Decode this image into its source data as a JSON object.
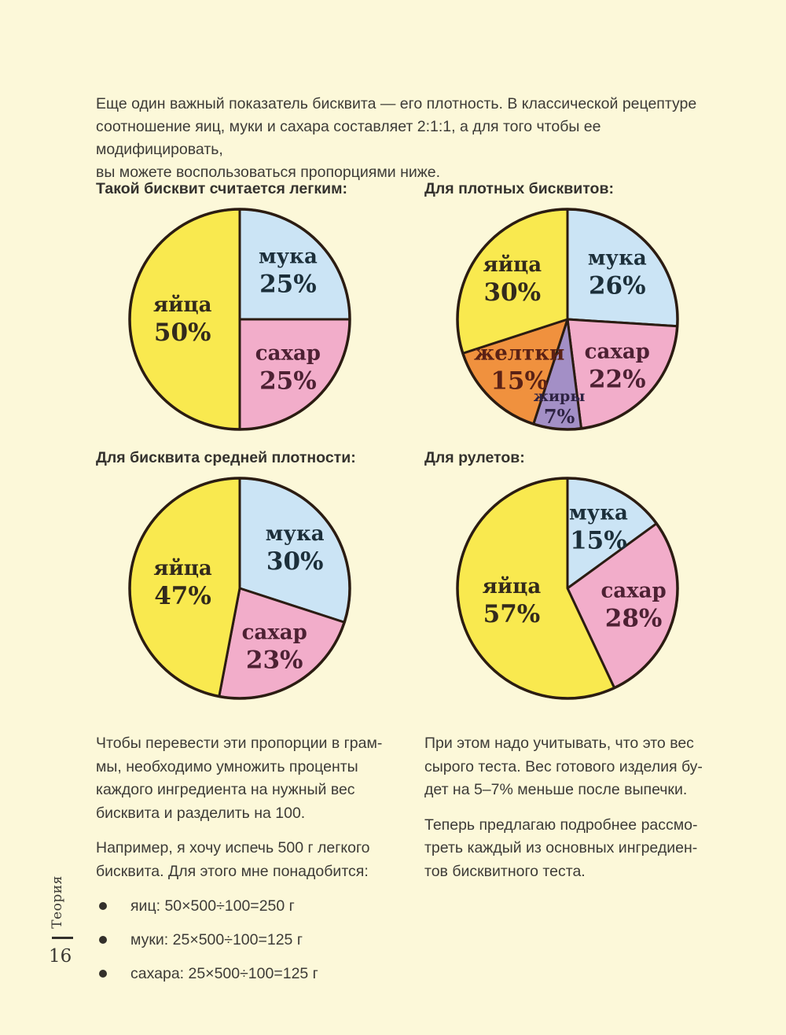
{
  "page": {
    "intro": "Еще один важный показатель бисквита — его плотность. В классической рецептуре\nсоотношение яиц, муки и сахара составляет 2:1:1, а для того чтобы ее модифицировать,\nвы можете воспользоваться пропорциями ниже.",
    "sidebar_label": "Теория",
    "page_number": "16"
  },
  "chart_data": [
    {
      "type": "pie",
      "title": "Такой бисквит считается легким:",
      "start_angle_deg": 0,
      "direction": "clockwise",
      "slices": [
        {
          "label": "мука",
          "name": "flour",
          "value": 25
        },
        {
          "label": "сахар",
          "name": "sugar",
          "value": 25
        },
        {
          "label": "яйца",
          "name": "eggs",
          "value": 50
        }
      ]
    },
    {
      "type": "pie",
      "title": "Для плотных бисквитов:",
      "start_angle_deg": 0,
      "direction": "clockwise",
      "slices": [
        {
          "label": "мука",
          "name": "flour",
          "value": 26
        },
        {
          "label": "сахар",
          "name": "sugar",
          "value": 22
        },
        {
          "label": "жиры",
          "name": "fats",
          "value": 7
        },
        {
          "label": "желтки",
          "name": "yolks",
          "value": 15
        },
        {
          "label": "яйца",
          "name": "eggs",
          "value": 30
        }
      ]
    },
    {
      "type": "pie",
      "title": "Для бисквита средней плотности:",
      "start_angle_deg": 0,
      "direction": "clockwise",
      "slices": [
        {
          "label": "мука",
          "name": "flour",
          "value": 30
        },
        {
          "label": "сахар",
          "name": "sugar",
          "value": 23
        },
        {
          "label": "яйца",
          "name": "eggs",
          "value": 47
        }
      ]
    },
    {
      "type": "pie",
      "title": "Для рулетов:",
      "start_angle_deg": 0,
      "direction": "clockwise",
      "slices": [
        {
          "label": "мука",
          "name": "flour",
          "value": 15
        },
        {
          "label": "сахар",
          "name": "sugar",
          "value": 28
        },
        {
          "label": "яйца",
          "name": "eggs",
          "value": 57
        }
      ]
    }
  ],
  "colors": {
    "background": "#fcf8d9",
    "outline": "#2b1c12",
    "body_text": "#3d3b37",
    "slices": {
      "мука": {
        "fill": "#cbe4f5",
        "text": "#1c2f3a"
      },
      "сахар": {
        "fill": "#f2adca",
        "text": "#4d2133"
      },
      "яйца": {
        "fill": "#f9e94f",
        "text": "#332a1c"
      },
      "желтки": {
        "fill": "#f0913e",
        "text": "#5a2115"
      },
      "жиры": {
        "fill": "#a38fc6",
        "text": "#2e2343"
      }
    }
  },
  "left_column": {
    "para1": "Чтобы перевести эти пропорции в грам-\nмы, необходимо умножить проценты\nкаждого ингредиента на нужный вес\nбисквита и разделить на 100.",
    "para2": "Например, я хочу испечь 500 г легкого\nбисквита. Для этого мне понадобится:",
    "bullets": [
      "яиц: 50×500÷100=250 г",
      "муки: 25×500÷100=125 г",
      "сахара: 25×500÷100=125 г"
    ]
  },
  "right_column": {
    "para1": "При этом надо учитывать, что это вес\nсырого теста. Вес готового изделия бу-\nдет на 5–7% меньше после выпечки.",
    "para2": "Теперь предлагаю подробнее рассмо-\nтреть каждый из основных ингредиен-\nтов бисквитного теста."
  }
}
